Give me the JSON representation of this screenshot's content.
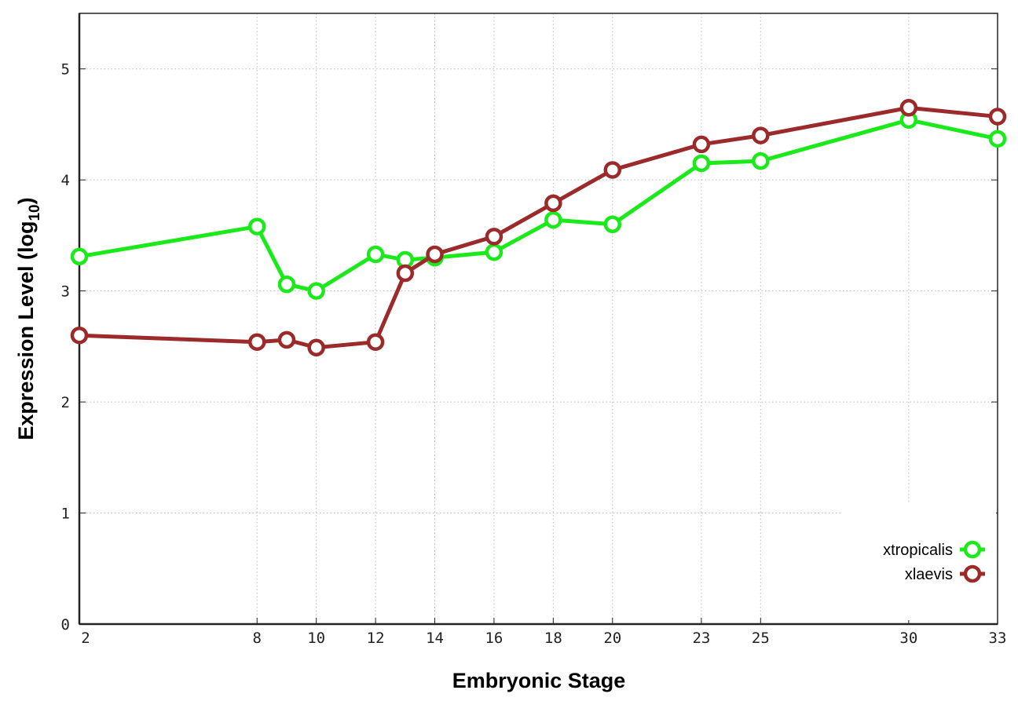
{
  "chart_data": {
    "type": "line",
    "title": "",
    "xlabel": "Embryonic Stage",
    "ylabel": "Expression Level (log",
    "ylabel_subscript": "10",
    "ylabel_close": ")",
    "xlim": [
      2,
      33
    ],
    "ylim": [
      0,
      5.5
    ],
    "xticks": [
      2,
      8,
      10,
      12,
      14,
      16,
      18,
      20,
      23,
      25,
      30,
      33
    ],
    "yticks": [
      0,
      1,
      2,
      3,
      4,
      5
    ],
    "grid": true,
    "legend_position": "bottom-right",
    "x": [
      2,
      8,
      9,
      10,
      12,
      13,
      14,
      16,
      18,
      20,
      23,
      25,
      30,
      33
    ],
    "series": [
      {
        "name": "xtropicalis",
        "color": "#1aea1a",
        "values": [
          3.31,
          3.58,
          3.06,
          3.0,
          3.33,
          3.28,
          3.3,
          3.35,
          3.64,
          3.6,
          4.15,
          4.17,
          4.54,
          4.37
        ]
      },
      {
        "name": "xlaevis",
        "color": "#9b2a2a",
        "values": [
          2.6,
          2.54,
          2.56,
          2.49,
          2.54,
          3.16,
          3.33,
          3.49,
          3.79,
          4.09,
          4.32,
          4.4,
          4.65,
          4.57
        ]
      }
    ]
  }
}
